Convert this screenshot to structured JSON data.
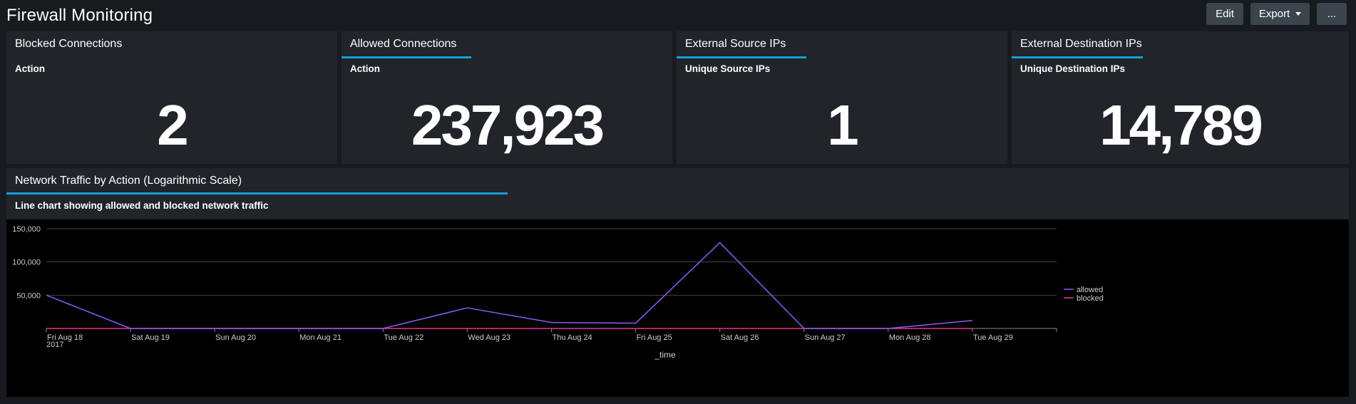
{
  "dashboard": {
    "title": "Firewall Monitoring"
  },
  "toolbar": {
    "edit_label": "Edit",
    "export_label": "Export",
    "more_label": "..."
  },
  "panels": [
    {
      "title": "Blocked Connections",
      "subtitle": "Action",
      "value": "2"
    },
    {
      "title": "Allowed Connections",
      "subtitle": "Action",
      "value": "237,923"
    },
    {
      "title": "External Source IPs",
      "subtitle": "Unique Source IPs",
      "value": "1"
    },
    {
      "title": "External Destination IPs",
      "subtitle": "Unique Destination IPs",
      "value": "14,789"
    }
  ],
  "chart_panel": {
    "title": "Network Traffic by Action (Logarithmic Scale)",
    "subtitle": "Line chart showing allowed and blocked network traffic"
  },
  "colors": {
    "accent": "#1a9cd8",
    "allowed": "#8b5cf6",
    "blocked": "#e8368f"
  },
  "chart_data": {
    "type": "line",
    "x": [
      "Fri Aug 18",
      "Sat Aug 19",
      "Sun Aug 20",
      "Mon Aug 21",
      "Tue Aug 22",
      "Wed Aug 23",
      "Thu Aug 24",
      "Fri Aug 25",
      "Sat Aug 26",
      "Sun Aug 27",
      "Mon Aug 28",
      "Tue Aug 29"
    ],
    "x_year": "2017",
    "xlabel": "_time",
    "ylabel": "",
    "ylim": [
      0,
      150000
    ],
    "yticks": [
      "50,000",
      "100,000",
      "150,000"
    ],
    "ytick_values": [
      50000,
      100000,
      150000
    ],
    "grid": true,
    "legend_position": "right",
    "series": [
      {
        "name": "allowed",
        "color": "#8b5cf6",
        "values": [
          50000,
          0,
          0,
          0,
          0,
          31000,
          9000,
          8000,
          129000,
          0,
          0,
          12000
        ]
      },
      {
        "name": "blocked",
        "color": "#e8368f",
        "values": [
          0,
          0,
          0,
          0,
          0,
          0,
          0,
          0,
          0,
          0,
          0,
          0
        ]
      }
    ]
  }
}
